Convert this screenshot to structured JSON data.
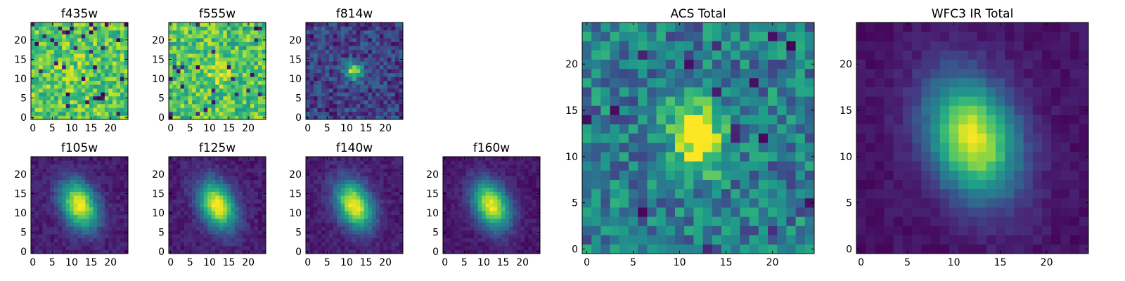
{
  "figure": {
    "colormap": "viridis",
    "colormap_stops": [
      "#440154",
      "#482878",
      "#3e4989",
      "#31688e",
      "#26828e",
      "#1f9e89",
      "#35b779",
      "#6ece58",
      "#b5de2b",
      "#fde725"
    ],
    "background": "#ffffff"
  },
  "chart_data": [
    {
      "type": "heatmap",
      "title": "f435w",
      "xlim": [
        0,
        24
      ],
      "ylim": [
        0,
        24
      ],
      "xticks": [
        "0",
        "5",
        "10",
        "15",
        "20"
      ],
      "yticks": [
        "0",
        "5",
        "10",
        "15",
        "20"
      ],
      "grid": false,
      "source_peak": 0.05,
      "source_sigma": 3.0,
      "noise_floor": 0.74,
      "noise_amplitude": 0.2,
      "dark_pixel_fraction": 0.05,
      "orientation_deg": 0,
      "aspect": 1.0
    },
    {
      "type": "heatmap",
      "title": "f555w",
      "xlim": [
        0,
        24
      ],
      "ylim": [
        0,
        24
      ],
      "xticks": [
        "0",
        "5",
        "10",
        "15",
        "20"
      ],
      "yticks": [
        "0",
        "5",
        "10",
        "15",
        "20"
      ],
      "grid": false,
      "source_peak": 0.18,
      "source_sigma": 2.5,
      "noise_floor": 0.72,
      "noise_amplitude": 0.2,
      "dark_pixel_fraction": 0.05,
      "orientation_deg": 0,
      "aspect": 1.0
    },
    {
      "type": "heatmap",
      "title": "f814w",
      "xlim": [
        0,
        24
      ],
      "ylim": [
        0,
        24
      ],
      "xticks": [
        "0",
        "5",
        "10",
        "15",
        "20"
      ],
      "yticks": [
        "0",
        "5",
        "10",
        "15",
        "20"
      ],
      "grid": false,
      "source_peak": 0.72,
      "source_sigma": 1.5,
      "noise_floor": 0.2,
      "noise_amplitude": 0.16,
      "dark_pixel_fraction": 0.02,
      "orientation_deg": 0,
      "aspect": 1.0
    },
    {
      "type": "heatmap",
      "title": "f105w",
      "xlim": [
        0,
        24
      ],
      "ylim": [
        0,
        24
      ],
      "xticks": [
        "0",
        "5",
        "10",
        "15",
        "20"
      ],
      "yticks": [
        "0",
        "5",
        "10",
        "15",
        "20"
      ],
      "grid": false,
      "source_peak": 0.92,
      "source_sigma": 3.0,
      "noise_floor": 0.08,
      "noise_amplitude": 0.06,
      "dark_pixel_fraction": 0,
      "orientation_deg": 25,
      "aspect": 1.5
    },
    {
      "type": "heatmap",
      "title": "f125w",
      "xlim": [
        0,
        24
      ],
      "ylim": [
        0,
        24
      ],
      "xticks": [
        "0",
        "5",
        "10",
        "15",
        "20"
      ],
      "yticks": [
        "0",
        "5",
        "10",
        "15",
        "20"
      ],
      "grid": false,
      "source_peak": 0.92,
      "source_sigma": 3.0,
      "noise_floor": 0.08,
      "noise_amplitude": 0.06,
      "dark_pixel_fraction": 0,
      "orientation_deg": 25,
      "aspect": 1.5
    },
    {
      "type": "heatmap",
      "title": "f140w",
      "xlim": [
        0,
        24
      ],
      "ylim": [
        0,
        24
      ],
      "xticks": [
        "0",
        "5",
        "10",
        "15",
        "20"
      ],
      "yticks": [
        "0",
        "5",
        "10",
        "15",
        "20"
      ],
      "grid": false,
      "source_peak": 0.92,
      "source_sigma": 3.0,
      "noise_floor": 0.08,
      "noise_amplitude": 0.06,
      "dark_pixel_fraction": 0,
      "orientation_deg": 25,
      "aspect": 1.5
    },
    {
      "type": "heatmap",
      "title": "f160w",
      "xlim": [
        0,
        24
      ],
      "ylim": [
        0,
        24
      ],
      "xticks": [
        "0",
        "5",
        "10",
        "15",
        "20"
      ],
      "yticks": [
        "0",
        "5",
        "10",
        "15",
        "20"
      ],
      "grid": false,
      "source_peak": 0.92,
      "source_sigma": 3.0,
      "noise_floor": 0.06,
      "noise_amplitude": 0.05,
      "dark_pixel_fraction": 0,
      "orientation_deg": 25,
      "aspect": 1.5
    },
    {
      "type": "heatmap",
      "title": "ACS Total",
      "xlim": [
        0,
        24
      ],
      "ylim": [
        0,
        24
      ],
      "xticks": [
        "0",
        "5",
        "10",
        "15",
        "20"
      ],
      "yticks": [
        "0",
        "5",
        "10",
        "15",
        "20"
      ],
      "grid": false,
      "source_peak": 0.65,
      "source_sigma": 2.2,
      "noise_floor": 0.42,
      "noise_amplitude": 0.22,
      "dark_pixel_fraction": 0.03,
      "orientation_deg": 0,
      "aspect": 1.2
    },
    {
      "type": "heatmap",
      "title": "WFC3 IR Total",
      "xlim": [
        0,
        24
      ],
      "ylim": [
        0,
        24
      ],
      "xticks": [
        "0",
        "5",
        "10",
        "15",
        "20"
      ],
      "yticks": [
        "0",
        "5",
        "10",
        "15",
        "20"
      ],
      "grid": false,
      "source_peak": 0.92,
      "source_sigma": 3.2,
      "noise_floor": 0.05,
      "noise_amplitude": 0.04,
      "dark_pixel_fraction": 0,
      "orientation_deg": 20,
      "aspect": 1.45
    }
  ]
}
